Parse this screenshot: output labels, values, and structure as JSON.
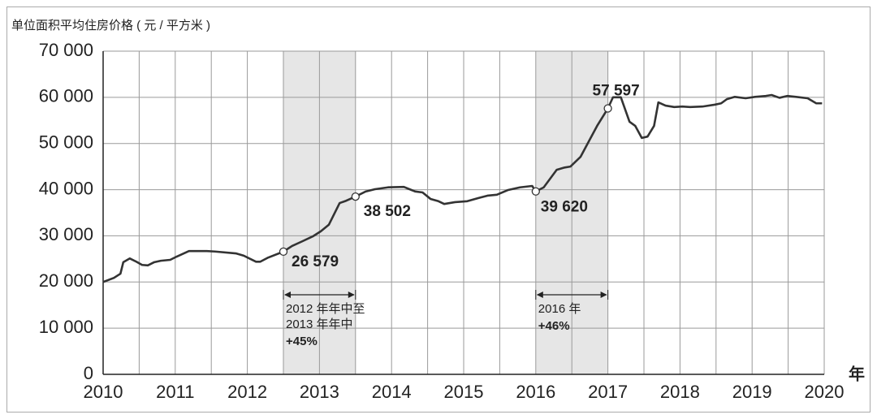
{
  "chart_data": {
    "type": "line",
    "title": "单位面积平均住房价格 ( 元 / 平方米 )",
    "x_label": "年",
    "x": [
      2010.0,
      2010.15,
      2010.24,
      2010.28,
      2010.37,
      2010.46,
      2010.54,
      2010.62,
      2010.71,
      2010.8,
      2010.93,
      2011.02,
      2011.19,
      2011.44,
      2011.55,
      2011.84,
      2011.95,
      2012.12,
      2012.18,
      2012.29,
      2012.5,
      2012.62,
      2012.76,
      2012.91,
      2013.02,
      2013.13,
      2013.28,
      2013.37,
      2013.5,
      2013.64,
      2013.77,
      2013.95,
      2014.17,
      2014.28,
      2014.33,
      2014.43,
      2014.54,
      2014.65,
      2014.73,
      2014.88,
      2015.05,
      2015.21,
      2015.33,
      2015.46,
      2015.61,
      2015.78,
      2015.95,
      2016.0,
      2016.11,
      2016.29,
      2016.4,
      2016.48,
      2016.62,
      2016.73,
      2016.85,
      2017.0,
      2017.07,
      2017.18,
      2017.3,
      2017.38,
      2017.47,
      2017.55,
      2017.64,
      2017.7,
      2017.8,
      2017.92,
      2018.03,
      2018.14,
      2018.31,
      2018.48,
      2018.57,
      2018.65,
      2018.76,
      2018.91,
      2019.04,
      2019.19,
      2019.27,
      2019.38,
      2019.49,
      2019.61,
      2019.77,
      2019.89,
      2019.97
    ],
    "series": [
      {
        "color": "#333333",
        "values": [
          20000,
          20900,
          21800,
          24300,
          25100,
          24400,
          23700,
          23600,
          24300,
          24600,
          24800,
          25500,
          26700,
          26700,
          26600,
          26200,
          25700,
          24400,
          24400,
          25300,
          26579,
          27800,
          28800,
          29900,
          31000,
          32400,
          37100,
          37600,
          38502,
          39600,
          40100,
          40500,
          40600,
          39900,
          39600,
          39400,
          38000,
          37500,
          36900,
          37300,
          37500,
          38200,
          38700,
          38900,
          39900,
          40500,
          40800,
          39620,
          40500,
          44300,
          44800,
          45000,
          47100,
          50300,
          53800,
          57597,
          60000,
          60000,
          54700,
          53800,
          51200,
          51500,
          53800,
          58900,
          58200,
          57900,
          58000,
          57900,
          58000,
          58400,
          58700,
          59600,
          60100,
          59800,
          60100,
          60300,
          60500,
          59900,
          60300,
          60100,
          59800,
          58700,
          58700
        ]
      }
    ],
    "xlim": [
      2010,
      2020
    ],
    "xticks": [
      2010,
      2011,
      2012,
      2013,
      2014,
      2015,
      2016,
      2017,
      2018,
      2019,
      2020
    ],
    "minor_xticks": [
      2010.5,
      2011.5,
      2012.5,
      2013.5,
      2014.5,
      2015.5,
      2016.5,
      2017.5,
      2018.5,
      2019.5
    ],
    "ylim": [
      0,
      70000
    ],
    "yticks": [
      0,
      {
        "value": 10000,
        "label": "10 000"
      },
      {
        "value": 20000,
        "label": "20 000"
      },
      {
        "value": 30000,
        "label": "30 000"
      },
      {
        "value": 40000,
        "label": "40 000"
      },
      {
        "value": 50000,
        "label": "50 000"
      },
      {
        "value": 60000,
        "label": "60 000"
      },
      {
        "value": 70000,
        "label": "70 000"
      }
    ],
    "grid": true,
    "annotations": [
      {
        "x": 2012.5,
        "y": 26579,
        "label": "26 579"
      },
      {
        "x": 2013.5,
        "y": 38502,
        "label": "38 502"
      },
      {
        "x": 2016.0,
        "y": 39620,
        "label": "39 620"
      },
      {
        "x": 2017.0,
        "y": 57597,
        "label": "57 597"
      }
    ],
    "spans": [
      {
        "start": 2012.5,
        "end": 2013.5,
        "lines": [
          "2012 年年中至",
          "2013 年年中"
        ],
        "change": "+45%"
      },
      {
        "start": 2016,
        "end": 2017,
        "lines": [
          "2016 年"
        ],
        "change": "+46%"
      }
    ]
  }
}
